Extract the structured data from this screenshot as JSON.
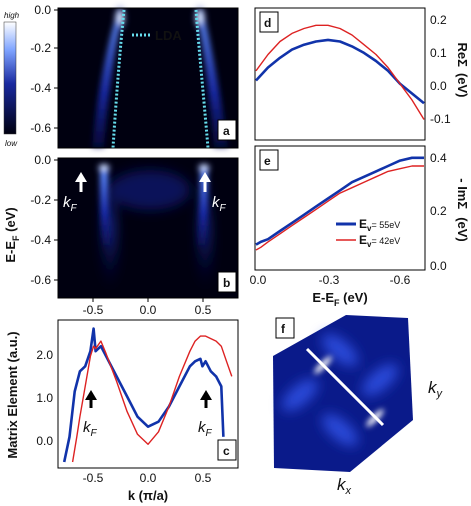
{
  "colorbar": {
    "high": "high",
    "low": "low"
  },
  "panels": {
    "a": {
      "label": "a",
      "legend": "LDA"
    },
    "b": {
      "label": "b",
      "kf_label": "k",
      "kf_sub": "F"
    },
    "c": {
      "label": "c",
      "kf_label": "k",
      "kf_sub": "F"
    },
    "d": {
      "label": "d"
    },
    "e": {
      "label": "e"
    },
    "f": {
      "label": "f",
      "kx": "k",
      "kx_sub": "x",
      "ky": "k",
      "ky_sub": "y"
    }
  },
  "left_axis": {
    "ylabel_main": "E-E",
    "ylabel_sub": "F",
    "ylabel_unit": " (eV)",
    "a_yticks": [
      "0.0",
      "-0.2",
      "-0.4",
      "-0.6"
    ],
    "b_yticks": [
      "0.0",
      "-0.2",
      "-0.4",
      "-0.6"
    ],
    "k_ticks": [
      "-0.5",
      "0.0",
      "0.5"
    ],
    "c_yticks": [
      "2.0",
      "1.0",
      "0.0"
    ],
    "c_ylabel": "Matrix  Element  (a.u.)",
    "c_xlabel": "k (π/a)"
  },
  "right_axis": {
    "d_yticks": [
      "0.2",
      "0.1",
      "0.0",
      "-0.1"
    ],
    "d_ylabel_pre": "Re",
    "d_ylabel_sym": "Σ",
    "d_ylabel_unit": "(eV)",
    "e_yticks": [
      "0.4",
      "0.2",
      "0.0"
    ],
    "e_ylabel_pre": "- Im",
    "e_ylabel_sym": "Σ",
    "e_ylabel_unit": "(eV)",
    "x_ticks": [
      "0.0",
      "-0.3",
      "-0.6"
    ],
    "xlabel_main": "E-E",
    "xlabel_sub": "F",
    "xlabel_unit": " (eV)"
  },
  "legend_e": [
    {
      "label_main": "E",
      "label_sub": "v",
      "value": "= 55eV",
      "color": "#1133aa"
    },
    {
      "label_main": "E",
      "label_sub": "v",
      "value": "= 42eV",
      "color": "#dd2222"
    }
  ],
  "colors": {
    "blue": "#1133aa",
    "red": "#dd2222",
    "lda": "#66ddee",
    "dark": "#000010"
  },
  "chart_data": [
    {
      "id": "d",
      "type": "line",
      "xlabel": "E-E_F (eV)",
      "ylabel": "ReΣ (eV)",
      "xlim": [
        0.0,
        -0.7
      ],
      "ylim": [
        -0.15,
        0.25
      ],
      "series": [
        {
          "name": "E_v = 55eV",
          "color": "#1133aa",
          "x": [
            0.0,
            -0.05,
            -0.1,
            -0.15,
            -0.2,
            -0.25,
            -0.3,
            -0.35,
            -0.4,
            -0.45,
            -0.5,
            -0.55,
            -0.6,
            -0.65,
            -0.7
          ],
          "y": [
            0.03,
            0.07,
            0.1,
            0.125,
            0.14,
            0.15,
            0.155,
            0.15,
            0.135,
            0.115,
            0.09,
            0.06,
            0.02,
            -0.01,
            -0.04
          ]
        },
        {
          "name": "E_v = 42eV",
          "color": "#dd2222",
          "x": [
            0.0,
            -0.05,
            -0.1,
            -0.15,
            -0.2,
            -0.25,
            -0.3,
            -0.35,
            -0.4,
            -0.45,
            -0.5,
            -0.55,
            -0.6,
            -0.65,
            -0.7
          ],
          "y": [
            0.06,
            0.11,
            0.15,
            0.175,
            0.19,
            0.2,
            0.2,
            0.19,
            0.17,
            0.14,
            0.11,
            0.07,
            0.02,
            -0.03,
            -0.09
          ]
        }
      ]
    },
    {
      "id": "e",
      "type": "line",
      "xlabel": "E-E_F (eV)",
      "ylabel": "-ImΣ (eV)",
      "xlim": [
        0.0,
        -0.7
      ],
      "ylim": [
        0.0,
        0.45
      ],
      "series": [
        {
          "name": "E_v = 55eV",
          "color": "#1133aa",
          "x": [
            0.0,
            -0.02,
            -0.05,
            -0.1,
            -0.15,
            -0.2,
            -0.25,
            -0.3,
            -0.35,
            -0.4,
            -0.45,
            -0.5,
            -0.55,
            -0.6,
            -0.65,
            -0.7
          ],
          "y": [
            0.09,
            0.1,
            0.11,
            0.14,
            0.17,
            0.2,
            0.23,
            0.26,
            0.29,
            0.32,
            0.34,
            0.36,
            0.38,
            0.4,
            0.41,
            0.41
          ]
        },
        {
          "name": "E_v = 42eV",
          "color": "#dd2222",
          "x": [
            0.0,
            -0.02,
            -0.05,
            -0.1,
            -0.15,
            -0.2,
            -0.25,
            -0.3,
            -0.35,
            -0.4,
            -0.45,
            -0.5,
            -0.55,
            -0.6,
            -0.65,
            -0.7
          ],
          "y": [
            0.07,
            0.08,
            0.1,
            0.13,
            0.16,
            0.19,
            0.22,
            0.25,
            0.28,
            0.3,
            0.32,
            0.34,
            0.36,
            0.37,
            0.38,
            0.38
          ]
        }
      ]
    },
    {
      "id": "c",
      "type": "line",
      "xlabel": "k (π/a)",
      "ylabel": "Matrix Element (a.u.)",
      "xlim": [
        -0.85,
        0.85
      ],
      "ylim": [
        -0.4,
        2.5
      ],
      "series": [
        {
          "name": "E_v = 55eV",
          "color": "#1133aa",
          "x": [
            -0.8,
            -0.75,
            -0.7,
            -0.65,
            -0.6,
            -0.55,
            -0.52,
            -0.5,
            -0.45,
            -0.4,
            -0.3,
            -0.2,
            -0.1,
            0.0,
            0.1,
            0.2,
            0.3,
            0.4,
            0.45,
            0.5,
            0.52,
            0.55,
            0.6,
            0.65,
            0.7,
            0.72
          ],
          "y": [
            -0.3,
            0.2,
            1.1,
            1.5,
            1.6,
            1.9,
            2.35,
            1.9,
            2.0,
            1.8,
            1.4,
            1.0,
            0.6,
            0.4,
            0.5,
            0.8,
            1.2,
            1.6,
            1.7,
            1.75,
            1.6,
            1.7,
            1.5,
            1.4,
            1.2,
            0.2
          ]
        },
        {
          "name": "E_v = 42eV",
          "color": "#dd2222",
          "x": [
            -0.72,
            -0.68,
            -0.65,
            -0.6,
            -0.55,
            -0.52,
            -0.5,
            -0.45,
            -0.4,
            -0.3,
            -0.2,
            -0.1,
            0.0,
            0.1,
            0.2,
            0.3,
            0.4,
            0.45,
            0.5,
            0.55,
            0.6,
            0.65,
            0.7,
            0.75,
            0.8
          ],
          "y": [
            -0.3,
            0.2,
            0.6,
            1.2,
            1.8,
            2.0,
            1.95,
            2.1,
            1.85,
            1.3,
            0.7,
            0.25,
            0.05,
            0.3,
            0.8,
            1.4,
            1.9,
            2.1,
            2.2,
            2.2,
            2.15,
            2.1,
            2.0,
            1.7,
            1.4
          ]
        }
      ]
    }
  ]
}
